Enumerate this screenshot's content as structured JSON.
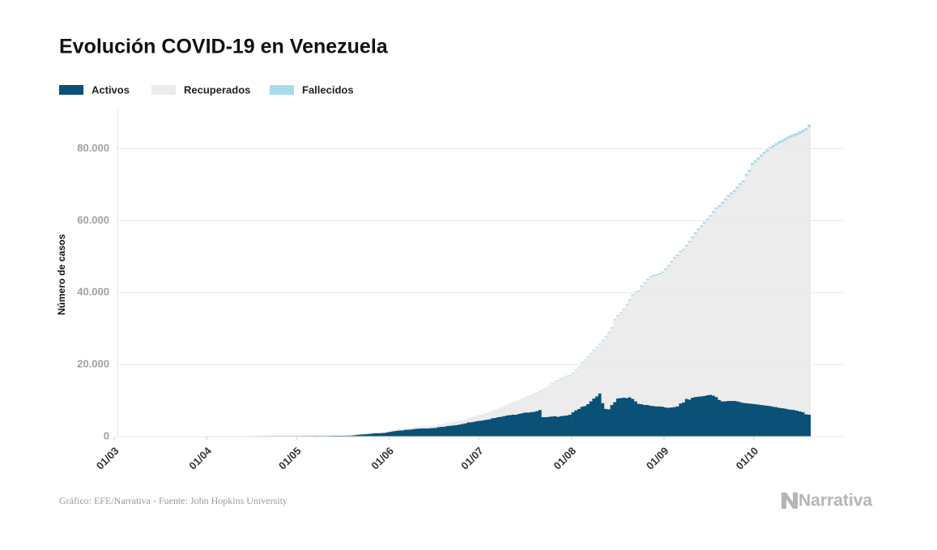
{
  "chart_data": {
    "type": "stacked_bar",
    "title": "Evolución COVID-19 en Venezuela",
    "y_label": "Número de casos",
    "source": "Gráfico: EFE/Narrativa - Fuente: John Hopkins University",
    "logo": "Narrativa",
    "ylim": [
      0,
      90000
    ],
    "yticks": [
      0,
      {
        "value": 20000,
        "label": "20.000"
      },
      {
        "value": 40000,
        "label": "40.000"
      },
      {
        "value": 60000,
        "label": "60.000"
      },
      {
        "value": 80000,
        "label": "80.000"
      }
    ],
    "grid": true,
    "legend": "top-left",
    "categories": [
      "01/03",
      null,
      null,
      null,
      null,
      null,
      null,
      null,
      null,
      null,
      null,
      null,
      null,
      null,
      null,
      null,
      null,
      null,
      null,
      null,
      null,
      null,
      null,
      null,
      null,
      null,
      null,
      null,
      null,
      null,
      null,
      "01/04",
      null,
      null,
      null,
      null,
      null,
      null,
      null,
      null,
      null,
      null,
      null,
      null,
      null,
      null,
      null,
      null,
      null,
      null,
      null,
      null,
      null,
      null,
      null,
      null,
      null,
      null,
      null,
      null,
      null,
      "01/05",
      null,
      null,
      null,
      null,
      null,
      null,
      null,
      null,
      null,
      null,
      null,
      null,
      null,
      null,
      null,
      null,
      null,
      null,
      null,
      null,
      null,
      null,
      null,
      null,
      null,
      null,
      null,
      null,
      null,
      null,
      "01/06",
      null,
      null,
      null,
      null,
      null,
      null,
      null,
      null,
      null,
      null,
      null,
      null,
      null,
      null,
      null,
      null,
      null,
      null,
      null,
      null,
      null,
      null,
      null,
      null,
      null,
      null,
      null,
      null,
      null,
      "01/07",
      null,
      null,
      null,
      null,
      null,
      null,
      null,
      null,
      null,
      null,
      null,
      null,
      null,
      null,
      null,
      null,
      null,
      null,
      null,
      null,
      null,
      null,
      null,
      null,
      null,
      null,
      null,
      null,
      null,
      null,
      "01/08",
      null,
      null,
      null,
      null,
      null,
      null,
      null,
      null,
      null,
      null,
      null,
      null,
      null,
      null,
      null,
      null,
      null,
      null,
      null,
      null,
      null,
      null,
      null,
      null,
      null,
      null,
      null,
      null,
      null,
      null,
      "01/09",
      null,
      null,
      null,
      null,
      null,
      null,
      null,
      null,
      null,
      null,
      null,
      null,
      null,
      null,
      null,
      null,
      null,
      null,
      null,
      null,
      null,
      null,
      null,
      null,
      null,
      null,
      null,
      null,
      null,
      "01/10",
      null,
      null,
      null,
      null,
      null,
      null,
      null,
      null,
      null,
      null,
      null,
      null,
      null,
      null,
      null,
      null,
      null,
      null
    ],
    "series": [
      {
        "name": "Activos",
        "color": "#0b5077",
        "values": [
          0,
          0,
          0,
          0,
          0,
          0,
          0,
          0,
          0,
          0,
          0,
          0,
          2,
          10,
          17,
          33,
          36,
          36,
          42,
          42,
          70,
          70,
          62,
          69,
          76,
          91,
          75,
          74,
          78,
          77,
          93,
          99,
          107,
          96,
          87,
          94,
          95,
          99,
          103,
          90,
          96,
          100,
          104,
          84,
          107,
          107,
          136,
          136,
          164,
          161,
          166,
          169,
          176,
          178,
          179,
          175,
          177,
          177,
          179,
          179,
          179,
          181,
          183,
          193,
          195,
          195,
          199,
          205,
          189,
          191,
          198,
          199,
          211,
          219,
          220,
          235,
          225,
          229,
          274,
          311,
          388,
          518,
          593,
          634,
          696,
          762,
          871,
          915,
          949,
          972,
          1039,
          1194,
          1346,
          1482,
          1594,
          1707,
          1743,
          1894,
          1925,
          1991,
          2119,
          2205,
          2250,
          2284,
          2279,
          2312,
          2355,
          2423,
          2638,
          2696,
          2771,
          2936,
          3024,
          3113,
          3212,
          3349,
          3504,
          3678,
          3936,
          4001,
          4132,
          4332,
          4400,
          4500,
          4700,
          4800,
          5100,
          5200,
          5400,
          5500,
          5700,
          5900,
          6000,
          6100,
          6100,
          6300,
          6500,
          6700,
          6700,
          6800,
          6900,
          7100,
          7400,
          5400,
          5400,
          5500,
          5600,
          5700,
          5500,
          5700,
          5800,
          5900,
          6100,
          6800,
          7300,
          7700,
          8300,
          8500,
          9000,
          9800,
          10600,
          11200,
          12000,
          9300,
          7700,
          7600,
          8800,
          9600,
          10600,
          10700,
          10800,
          10700,
          10900,
          10500,
          9800,
          9100,
          9000,
          8800,
          8800,
          8600,
          8500,
          8400,
          8400,
          8300,
          8100,
          8000,
          8100,
          8200,
          8400,
          9200,
          9500,
          10500,
          10300,
          10800,
          11000,
          11100,
          11200,
          11300,
          11500,
          11600,
          11400,
          11000,
          10200,
          9800,
          9800,
          9900,
          9900,
          9900,
          9800,
          9600,
          9400,
          9300,
          9200,
          9100,
          9000,
          8900,
          8800,
          8700,
          8600,
          8500,
          8300,
          8200,
          8000,
          7900,
          7800,
          7600,
          7500,
          7400,
          7200,
          7000,
          6800,
          6200,
          6100
        ]
      },
      {
        "name": "Recuperados",
        "color": "#ececec",
        "values": [
          0,
          0,
          0,
          0,
          0,
          0,
          0,
          0,
          0,
          0,
          0,
          0,
          0,
          0,
          0,
          0,
          0,
          0,
          0,
          0,
          0,
          0,
          15,
          15,
          15,
          15,
          31,
          31,
          39,
          39,
          39,
          39,
          39,
          52,
          65,
          65,
          65,
          65,
          65,
          84,
          84,
          84,
          84,
          111,
          111,
          111,
          111,
          111,
          111,
          117,
          122,
          132,
          132,
          135,
          135,
          140,
          142,
          142,
          142,
          142,
          142,
          142,
          142,
          142,
          152,
          152,
          152,
          152,
          180,
          180,
          180,
          193,
          193,
          193,
          193,
          195,
          220,
          220,
          220,
          220,
          220,
          220,
          220,
          237,
          237,
          237,
          239,
          251,
          251,
          262,
          274,
          302,
          302,
          320,
          340,
          360,
          380,
          400,
          430,
          460,
          490,
          510,
          540,
          570,
          600,
          640,
          680,
          700,
          720,
          760,
          790,
          820,
          860,
          900,
          940,
          980,
          1020,
          1060,
          1150,
          1250,
          1350,
          1450,
          1611,
          1720,
          1782,
          1893,
          2010,
          2149,
          2229,
          2444,
          2602,
          2828,
          3096,
          3280,
          3518,
          3617,
          3828,
          4050,
          4382,
          4569,
          4874,
          5114,
          5249,
          7636,
          8081,
          8627,
          9189,
          9619,
          10110,
          10419,
          10617,
          10869,
          10894,
          10895,
          11106,
          11572,
          12279,
          12758,
          13113,
          13290,
          13371,
          13555,
          13591,
          17280,
          20011,
          21251,
          21323,
          22755,
          22894,
          23600,
          24473,
          25883,
          26936,
          28761,
          30225,
          31271,
          32568,
          33753,
          34727,
          35685,
          36044,
          36344,
          36668,
          37183,
          38238,
          39359,
          40382,
          41270,
          41760,
          41984,
          42234,
          42349,
          43603,
          44310,
          45292,
          46259,
          46991,
          47851,
          48551,
          49474,
          50750,
          52107,
          53563,
          54880,
          55892,
          56657,
          57362,
          57996,
          59071,
          60230,
          61200,
          63087,
          64295,
          66244,
          67178,
          68006,
          68894,
          69757,
          70533,
          71320,
          72036,
          72674,
          73353,
          73853,
          74433,
          75070,
          75545,
          75966,
          76473,
          77091,
          77713,
          78811,
          79801
        ]
      },
      {
        "name": "Fallecidos",
        "color": "#a8dbee",
        "values": [
          0,
          0,
          0,
          0,
          0,
          0,
          0,
          0,
          0,
          0,
          0,
          0,
          0,
          0,
          0,
          0,
          0,
          0,
          0,
          0,
          0,
          0,
          0,
          0,
          0,
          0,
          1,
          2,
          2,
          3,
          3,
          5,
          7,
          7,
          7,
          7,
          7,
          7,
          7,
          7,
          9,
          9,
          9,
          9,
          9,
          9,
          9,
          9,
          10,
          10,
          10,
          10,
          10,
          10,
          10,
          10,
          10,
          10,
          10,
          10,
          10,
          10,
          10,
          10,
          10,
          10,
          10,
          10,
          10,
          10,
          10,
          10,
          10,
          10,
          10,
          10,
          10,
          10,
          10,
          10,
          10,
          11,
          11,
          11,
          11,
          11,
          11,
          11,
          11,
          11,
          12,
          14,
          14,
          17,
          18,
          20,
          22,
          22,
          22,
          22,
          23,
          23,
          24,
          25,
          25,
          26,
          27,
          27,
          28,
          28,
          30,
          33,
          33,
          35,
          35,
          37,
          39,
          41,
          44,
          46,
          48,
          50,
          51,
          53,
          55,
          57,
          59,
          62,
          64,
          66,
          70,
          75,
          82,
          85,
          89,
          93,
          100,
          104,
          109,
          114,
          117,
          120,
          125,
          128,
          132,
          136,
          140,
          144,
          146,
          150,
          154,
          159,
          164,
          164,
          168,
          171,
          175,
          180,
          186,
          190,
          195,
          206,
          214,
          220,
          227,
          237,
          246,
          252,
          261,
          270,
          276,
          285,
          296,
          303,
          313,
          326,
          336,
          345,
          352,
          356,
          361,
          366,
          372,
          385,
          390,
          397,
          401,
          407,
          414,
          423,
          431,
          440,
          447,
          453,
          459,
          464,
          472,
          479,
          489,
          495,
          505,
          515,
          521,
          529,
          536,
          543,
          549,
          557,
          568,
          576,
          585,
          596,
          608,
          635,
          642,
          650,
          656,
          660,
          668,
          677,
          683,
          689,
          695,
          700,
          703,
          707,
          711,
          716,
          718,
          723,
          725,
          730,
          735
        ]
      }
    ]
  }
}
